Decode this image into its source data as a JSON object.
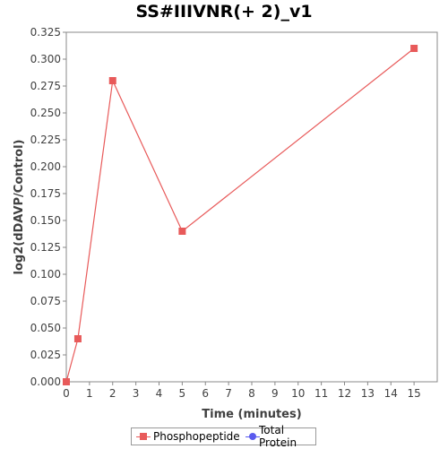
{
  "chart_data": {
    "type": "line",
    "title": "SS#IIIVNR(+ 2)_v1",
    "xlabel": "Time (minutes)",
    "ylabel": "log2(dDAVP/Control)",
    "xlim": [
      0,
      16
    ],
    "ylim": [
      0,
      0.325
    ],
    "x_ticks": [
      0,
      1,
      2,
      3,
      4,
      5,
      6,
      7,
      8,
      9,
      10,
      11,
      12,
      13,
      14,
      15
    ],
    "y_ticks": [
      "0.000",
      "0.025",
      "0.050",
      "0.075",
      "0.100",
      "0.125",
      "0.150",
      "0.175",
      "0.200",
      "0.225",
      "0.250",
      "0.275",
      "0.300",
      "0.325"
    ],
    "grid": false,
    "legend_position": "bottom",
    "series": [
      {
        "name": "Phosphopeptide",
        "color": "#e85a5a",
        "marker": "square",
        "x": [
          0,
          0.5,
          2,
          5,
          15
        ],
        "values": [
          0.0,
          0.04,
          0.28,
          0.14,
          0.31
        ]
      },
      {
        "name": "Total Protein",
        "color": "#5a5aee",
        "marker": "circle",
        "x": [],
        "values": []
      }
    ]
  }
}
